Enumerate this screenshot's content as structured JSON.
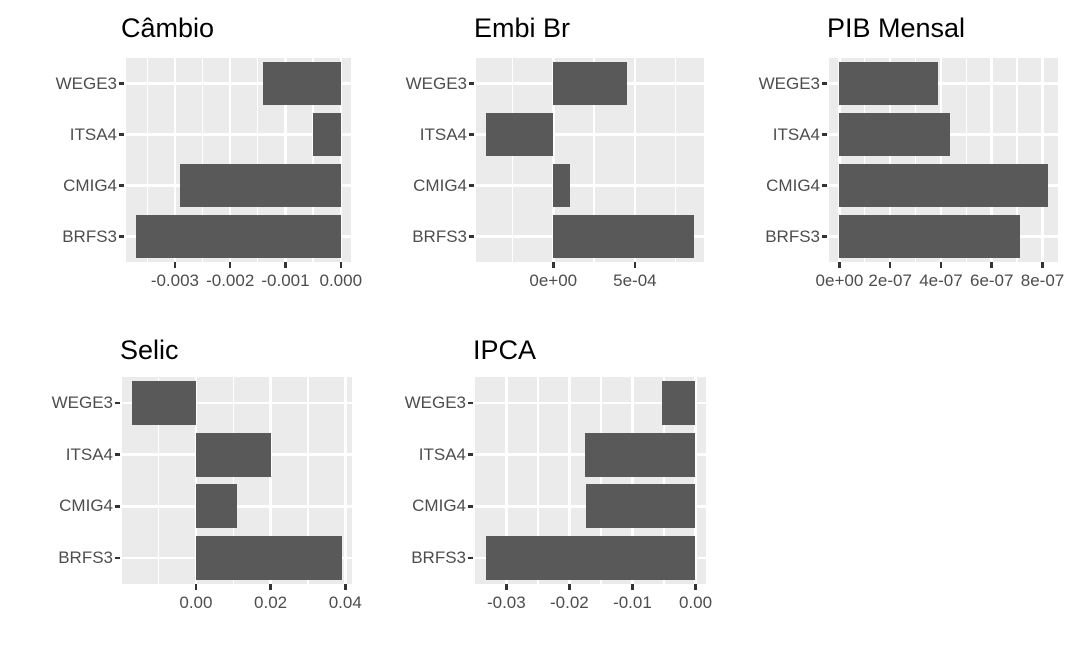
{
  "figure": {
    "background": "#FFFFFF",
    "panel_background": "#EBEBEB",
    "grid_color": "#FFFFFF",
    "bar_color": "#595959",
    "axis_text_color": "#4D4D4D",
    "title_color": "#000000",
    "tick_mark_color": "#333333"
  },
  "chart_data": [
    {
      "type": "bar",
      "orientation": "horizontal",
      "title": "Câmbio",
      "categories": [
        "WEGE3",
        "ITSA4",
        "CMIG4",
        "BRFS3"
      ],
      "values": [
        -0.0014,
        -0.0005,
        -0.0029,
        -0.0037
      ],
      "xlim": [
        -0.003885,
        0.000185
      ],
      "xticks": [
        {
          "v": -0.003,
          "label": "-0.003"
        },
        {
          "v": -0.002,
          "label": "-0.002"
        },
        {
          "v": -0.001,
          "label": "-0.001"
        },
        {
          "v": 0.0,
          "label": "0.000"
        }
      ],
      "xlabel": "",
      "ylabel": "",
      "grid": true,
      "legend": false
    },
    {
      "type": "bar",
      "orientation": "horizontal",
      "title": "Embi Br",
      "categories": [
        "WEGE3",
        "ITSA4",
        "CMIG4",
        "BRFS3"
      ],
      "values": [
        0.00045,
        -0.00041,
        0.0001,
        0.00086
      ],
      "xlim": [
        -0.0004735,
        0.0009235
      ],
      "xticks": [
        {
          "v": 0.0,
          "label": "0e+00"
        },
        {
          "v": 0.0005,
          "label": "5e-04"
        }
      ],
      "xlabel": "",
      "ylabel": "",
      "grid": true,
      "legend": false
    },
    {
      "type": "bar",
      "orientation": "horizontal",
      "title": "PIB Mensal",
      "categories": [
        "WEGE3",
        "ITSA4",
        "CMIG4",
        "BRFS3"
      ],
      "values": [
        3.9e-07,
        4.35e-07,
        8.2e-07,
        7.1e-07
      ],
      "xlim": [
        -4.1e-08,
        8.61e-07
      ],
      "xticks": [
        {
          "v": 0.0,
          "label": "0e+00"
        },
        {
          "v": 2e-07,
          "label": "2e-07"
        },
        {
          "v": 4e-07,
          "label": "4e-07"
        },
        {
          "v": 6e-07,
          "label": "6e-07"
        },
        {
          "v": 8e-07,
          "label": "8e-07"
        }
      ],
      "xlabel": "",
      "ylabel": "",
      "grid": true,
      "legend": false
    },
    {
      "type": "bar",
      "orientation": "horizontal",
      "title": "Selic",
      "categories": [
        "WEGE3",
        "ITSA4",
        "CMIG4",
        "BRFS3"
      ],
      "values": [
        -0.017,
        0.02,
        0.011,
        0.039
      ],
      "xlim": [
        -0.0198,
        0.0418
      ],
      "xticks": [
        {
          "v": 0.0,
          "label": "0.00"
        },
        {
          "v": 0.02,
          "label": "0.02"
        },
        {
          "v": 0.04,
          "label": "0.04"
        }
      ],
      "xlabel": "",
      "ylabel": "",
      "grid": true,
      "legend": false
    },
    {
      "type": "bar",
      "orientation": "horizontal",
      "title": "IPCA",
      "categories": [
        "WEGE3",
        "ITSA4",
        "CMIG4",
        "BRFS3"
      ],
      "values": [
        -0.0053,
        -0.0175,
        -0.0173,
        -0.0333
      ],
      "xlim": [
        -0.03497,
        0.001665
      ],
      "xticks": [
        {
          "v": -0.03,
          "label": "-0.03"
        },
        {
          "v": -0.02,
          "label": "-0.02"
        },
        {
          "v": -0.01,
          "label": "-0.01"
        },
        {
          "v": 0.0,
          "label": "0.00"
        }
      ],
      "xlabel": "",
      "ylabel": "",
      "grid": true,
      "legend": false
    }
  ]
}
